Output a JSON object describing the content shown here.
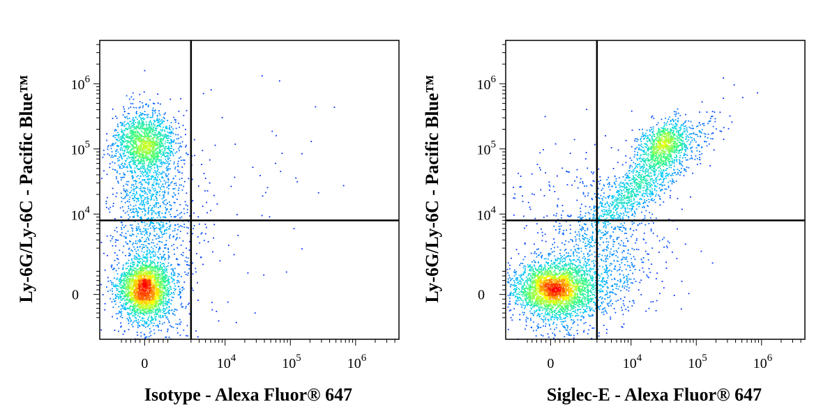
{
  "chart_data": [
    {
      "type": "scatter",
      "subtype": "flow-cytometry-density-dot-plot",
      "xlabel": "Isotype - Alexa Fluor® 647",
      "ylabel": "Ly-6G/Ly-6C - Pacific Blue™",
      "xscale": "biexponential",
      "yscale": "biexponential",
      "x_ticks": [
        "0",
        "10^4",
        "10^5",
        "10^6"
      ],
      "y_ticks": [
        "0",
        "10^4",
        "10^5",
        "10^6"
      ],
      "quadrant_gate": {
        "x": 3000,
        "y": 8000
      },
      "populations": [
        {
          "x": 0,
          "y": 150000,
          "density": "medium"
        },
        {
          "x": 0,
          "y": 0,
          "density": "high"
        }
      ],
      "grid": false,
      "legend": "none"
    },
    {
      "type": "scatter",
      "subtype": "flow-cytometry-density-dot-plot",
      "xlabel": "Siglec-E - Alexa Fluor® 647",
      "ylabel": "Ly-6G/Ly-6C - Pacific Blue™",
      "xscale": "biexponential",
      "yscale": "biexponential",
      "x_ticks": [
        "0",
        "10^4",
        "10^5",
        "10^6"
      ],
      "y_ticks": [
        "0",
        "10^4",
        "10^5",
        "10^6"
      ],
      "quadrant_gate": {
        "x": 3000,
        "y": 8000
      },
      "populations": [
        {
          "x": 60000,
          "y": 150000,
          "density": "medium"
        },
        {
          "x": 0,
          "y": 0,
          "density": "high"
        }
      ],
      "grid": false,
      "legend": "none"
    }
  ],
  "colors": {
    "density_low": "#0000ff",
    "density_mid_low": "#00c8ff",
    "density_mid": "#3cff78",
    "density_mid_high": "#ffff00",
    "density_high": "#ff0000"
  }
}
